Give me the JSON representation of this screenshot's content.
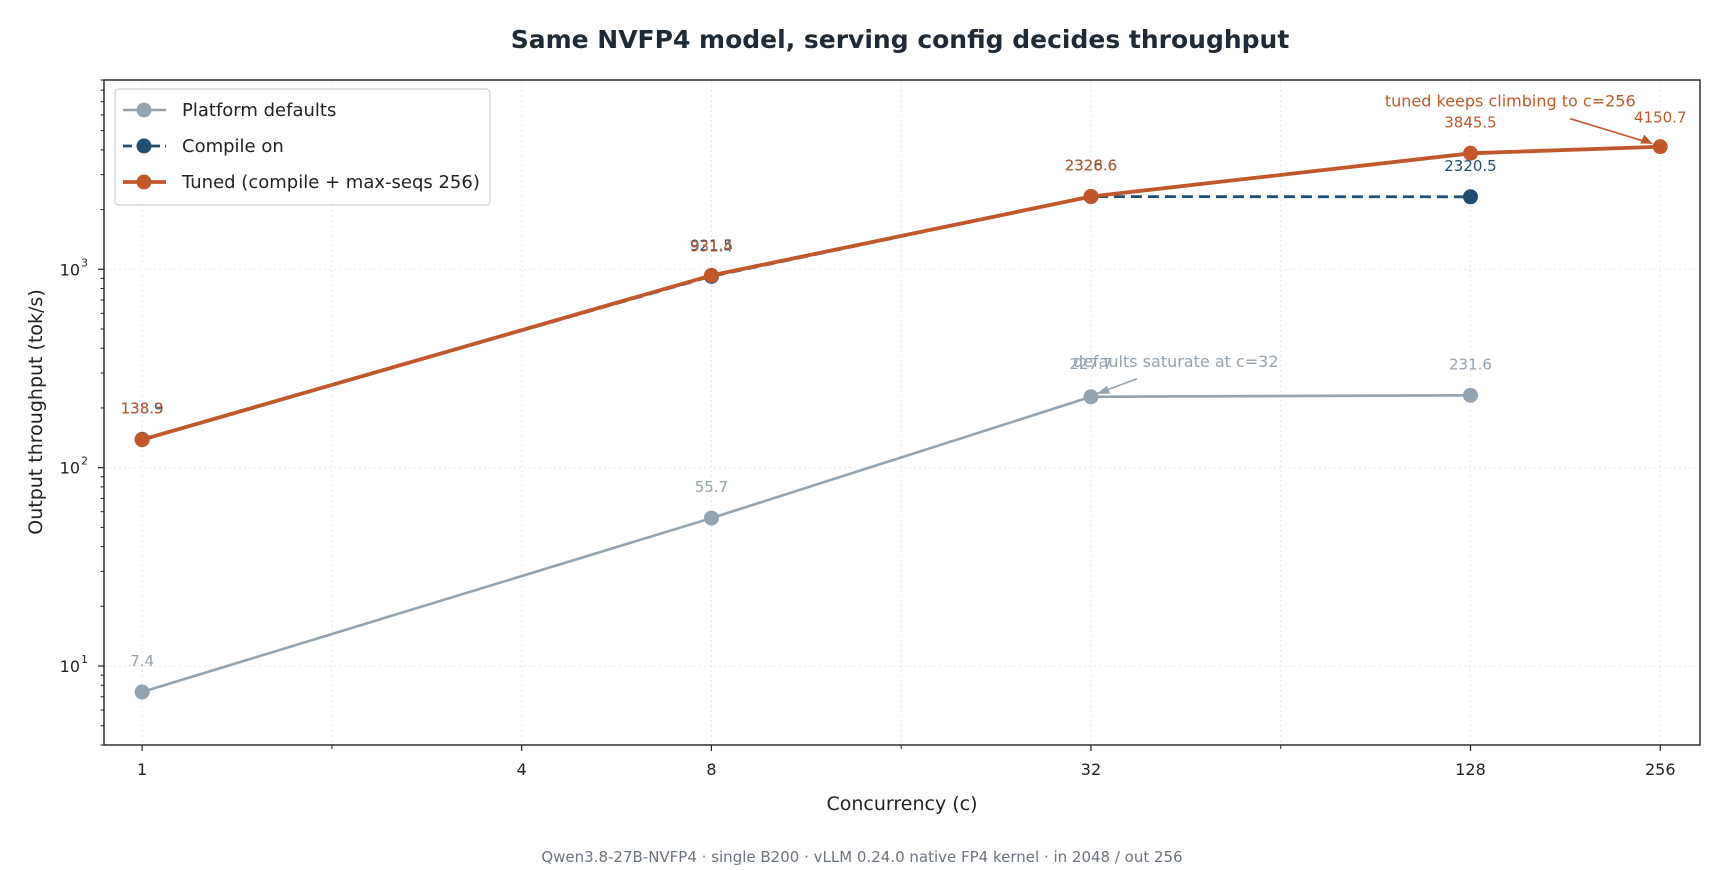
{
  "chart_data": {
    "type": "line",
    "title": "Same NVFP4 model, serving config decides throughput",
    "xlabel": "Concurrency (c)",
    "ylabel": "Output throughput (tok/s)",
    "footnote": "Qwen3.8-27B-NVFP4 · single B200 · vLLM 0.24.0 native FP4 kernel · in 2048 / out 256",
    "x_scale": "log2",
    "y_scale": "log10",
    "xlim": [
      0.87,
      296
    ],
    "ylim": [
      4,
      9000
    ],
    "x_ticks": [
      1,
      4,
      8,
      32,
      128,
      256
    ],
    "x_tick_labels": [
      "1",
      "4",
      "8",
      "32",
      "128",
      "256"
    ],
    "x_minor_ticks": [
      2,
      16,
      64
    ],
    "y_ticks": [
      10,
      100,
      1000
    ],
    "y_tick_labels": [
      "10",
      "10",
      "10"
    ],
    "y_tick_exponents": [
      "1",
      "2",
      "3"
    ],
    "grid": true,
    "legend_position": "top-left",
    "series": [
      {
        "name": "Platform defaults",
        "color": "#94a3b0",
        "dash": "solid",
        "x": [
          1,
          8,
          32,
          128
        ],
        "y": [
          7.4,
          55.7,
          227.7,
          231.6
        ],
        "labels": [
          "7.4",
          "55.7",
          "227.7",
          "231.6"
        ]
      },
      {
        "name": "Compile on",
        "color": "#1f4e72",
        "dash": "dashed",
        "x": [
          1,
          8,
          32,
          128
        ],
        "y": [
          138.9,
          921.5,
          2326.6,
          2320.5
        ],
        "labels": [
          "138.9",
          "921.5",
          "2326.6",
          "2320.5"
        ]
      },
      {
        "name": "Tuned (compile + max-seqs 256)",
        "color": "#c0582c",
        "dash": "solid",
        "x": [
          1,
          8,
          32,
          128,
          256
        ],
        "y": [
          138.3,
          931.4,
          2328.6,
          3845.5,
          4150.7
        ],
        "labels": [
          "138.3",
          "931.4",
          "2328.6",
          "3845.5",
          "4150.7"
        ]
      }
    ],
    "annotations": [
      {
        "text": "defaults saturate at c=32",
        "x": 32,
        "y": 227.7,
        "color": "#94a3b0"
      },
      {
        "text": "tuned keeps climbing to c=256",
        "x": 256,
        "y": 4150.7,
        "color": "#c0582c"
      }
    ]
  }
}
